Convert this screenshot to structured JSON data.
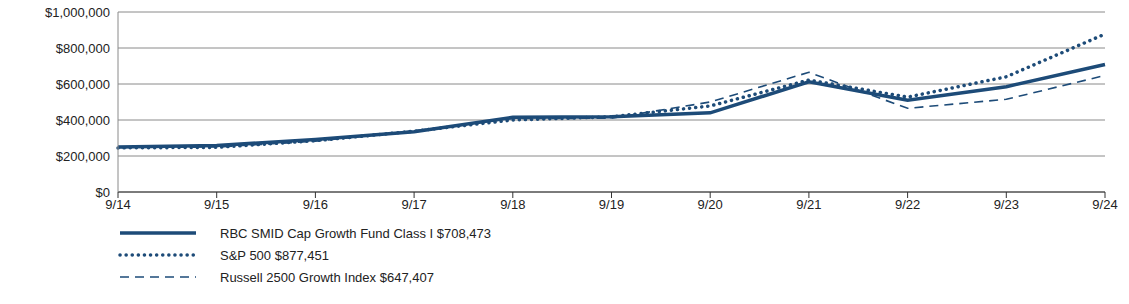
{
  "chart_data": {
    "type": "line",
    "categories": [
      "9/14",
      "9/15",
      "9/16",
      "9/17",
      "9/18",
      "9/19",
      "9/20",
      "9/21",
      "9/22",
      "9/23",
      "9/24"
    ],
    "series": [
      {
        "name": "RBC SMID Cap Growth Fund Class I $708,473",
        "color": "#1d4b78",
        "line_style": "solid",
        "values": [
          250000,
          258000,
          292000,
          335000,
          415000,
          418000,
          440000,
          612000,
          510000,
          585000,
          708473
        ]
      },
      {
        "name": "S&P 500 $877,451",
        "color": "#1d4b78",
        "line_style": "dotted",
        "values": [
          245000,
          248000,
          285000,
          338000,
          400000,
          418000,
          478000,
          622000,
          527000,
          640000,
          877451
        ]
      },
      {
        "name": "Russell 2500 Growth Index $647,407",
        "color": "#1d4b78",
        "line_style": "dashed",
        "values": [
          248000,
          250000,
          282000,
          340000,
          408000,
          410000,
          500000,
          665000,
          465000,
          515000,
          647407
        ]
      }
    ],
    "ylim": [
      0,
      1000000
    ],
    "yticks": [
      {
        "value": 0,
        "label": "$0"
      },
      {
        "value": 200000,
        "label": "$200,000"
      },
      {
        "value": 400000,
        "label": "$400,000"
      },
      {
        "value": 600000,
        "label": "$600,000"
      },
      {
        "value": 800000,
        "label": "$800,000"
      },
      {
        "value": 1000000,
        "label": "$1,000,000"
      }
    ],
    "grid": true,
    "legend": "bottom-left"
  }
}
